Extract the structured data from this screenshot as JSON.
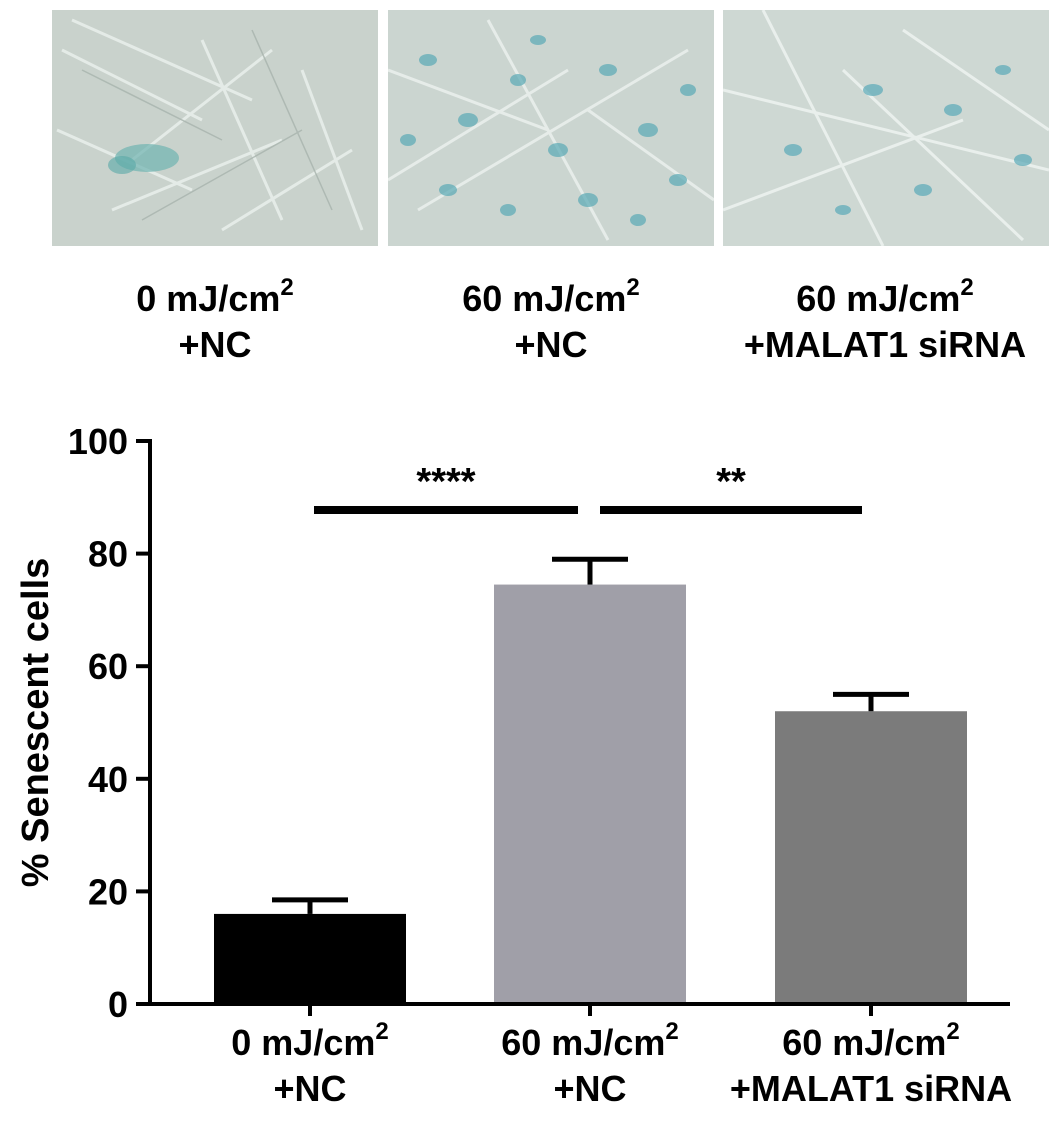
{
  "panels": [
    {
      "dose": "0 mJ/cm",
      "sup": "2",
      "treatment": "+NC"
    },
    {
      "dose": "60 mJ/cm",
      "sup": "2",
      "treatment": "+NC"
    },
    {
      "dose": "60 mJ/cm",
      "sup": "2",
      "treatment": "+MALAT1 siRNA"
    }
  ],
  "chart_data": {
    "type": "bar",
    "categories": [
      "0 mJ/cm2 +NC",
      "60 mJ/cm2 +NC",
      "60 mJ/cm2 +MALAT1 siRNA"
    ],
    "series": [
      {
        "values": [
          16,
          74.5,
          52
        ],
        "errors": [
          2.5,
          4.5,
          3
        ],
        "colors": [
          "#000000",
          "#a09fa8",
          "#7b7b7b"
        ]
      }
    ],
    "title": "",
    "xlabel": "",
    "ylabel": "% Senescent cells",
    "ylim": [
      0,
      100
    ],
    "yticks": [
      0,
      20,
      40,
      60,
      80,
      100
    ],
    "tick_labels": [
      "0",
      "20",
      "40",
      "60",
      "80",
      "100"
    ],
    "grid": false,
    "significance": [
      {
        "from": 0,
        "to": 1,
        "label": "****"
      },
      {
        "from": 1,
        "to": 2,
        "label": "**"
      }
    ]
  }
}
